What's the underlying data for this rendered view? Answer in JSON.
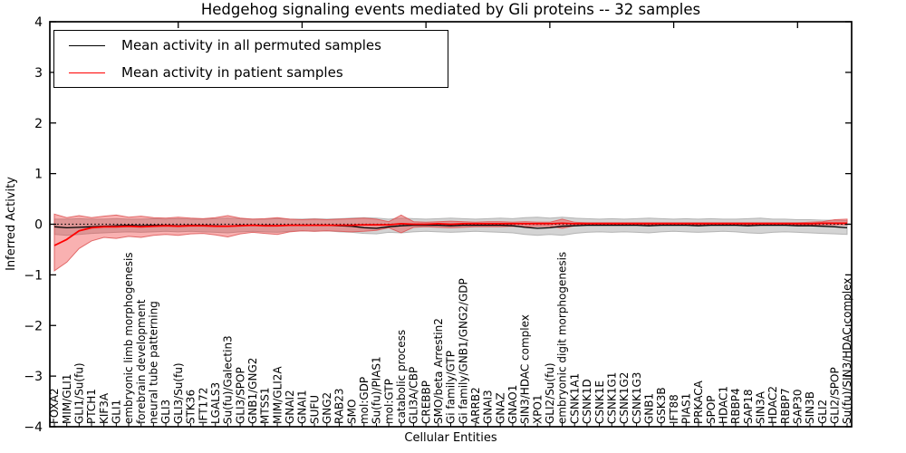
{
  "chart_data": {
    "type": "line",
    "title": "Hedgehog signaling events mediated by Gli proteins -- 32 samples",
    "xlabel": "Cellular Entities",
    "ylabel": "Inferred Activity",
    "ylim": [
      -4,
      4
    ],
    "yticks": [
      -4,
      -3,
      -2,
      -1,
      0,
      1,
      2,
      3,
      4
    ],
    "grid": false,
    "zero_line": true,
    "zero_line_style": "dotted",
    "legend_position": "upper left",
    "categories": [
      "FOXA2",
      "MIM/GLI1",
      "GLI1/Su(fu)",
      "PTCH1",
      "KIF3A",
      "GLI1",
      "embryonic limb morphogenesis",
      "forebrain development",
      "neural tube patterning",
      "GLI3",
      "GLI3/Su(fu)",
      "STK36",
      "IFT172",
      "LGALS3",
      "Su(fu)/Galectin3",
      "GLI3/SPOP",
      "GNB1/GNG2",
      "MTSS1",
      "MIM/GLI2A",
      "GNAI2",
      "GNAI1",
      "SUFU",
      "GNG2",
      "RAB23",
      "SMO",
      "mol:GDP",
      "Su(fu)/PIAS1",
      "mol:GTP",
      "catabolic process",
      "GLI3A/CBP",
      "CREBBP",
      "SMO/beta Arrestin2",
      "Gi family/GTP",
      "Gi family/GNB1/GNG2/GDP",
      "ARRB2",
      "GNAI3",
      "GNAZ",
      "GNAO1",
      "SIN3/HDAC complex",
      "XPO1",
      "GLI2/Su(fu)",
      "embryonic digit morphogenesis",
      "CSNK1A1",
      "CSNK1D",
      "CSNK1E",
      "CSNK1G1",
      "CSNK1G2",
      "CSNK1G3",
      "GNB1",
      "GSK3B",
      "IFT88",
      "PIAS1",
      "PRKACA",
      "SPOP",
      "HDAC1",
      "RBBP4",
      "SAP18",
      "SIN3A",
      "HDAC2",
      "RBBP7",
      "SAP30",
      "SIN3B",
      "GLI2",
      "GLI2/SPOP",
      "Su(fu)/SIN3/HDAC complex"
    ],
    "series": [
      {
        "name": "Mean activity in all permuted samples",
        "color": "#000000",
        "values": [
          -0.05,
          -0.07,
          -0.06,
          -0.05,
          -0.04,
          -0.03,
          -0.02,
          -0.03,
          -0.02,
          -0.02,
          -0.03,
          -0.02,
          -0.02,
          -0.03,
          -0.04,
          -0.02,
          -0.02,
          -0.02,
          -0.03,
          -0.02,
          -0.02,
          -0.02,
          -0.02,
          -0.03,
          -0.04,
          -0.07,
          -0.08,
          -0.05,
          -0.03,
          -0.02,
          -0.02,
          -0.02,
          -0.03,
          -0.02,
          -0.02,
          -0.02,
          -0.02,
          -0.03,
          -0.06,
          -0.08,
          -0.07,
          -0.04,
          -0.03,
          -0.02,
          -0.02,
          -0.02,
          -0.02,
          -0.02,
          -0.03,
          -0.02,
          -0.02,
          -0.02,
          -0.03,
          -0.02,
          -0.02,
          -0.02,
          -0.03,
          -0.02,
          -0.02,
          -0.02,
          -0.03,
          -0.03,
          -0.04,
          -0.05,
          -0.07
        ]
      },
      {
        "name": "Mean activity in patient samples",
        "color": "#ff0000",
        "values": [
          -0.42,
          -0.3,
          -0.13,
          -0.07,
          -0.05,
          -0.05,
          -0.04,
          -0.05,
          -0.04,
          -0.03,
          -0.04,
          -0.03,
          -0.03,
          -0.04,
          -0.04,
          -0.03,
          -0.02,
          -0.03,
          -0.03,
          -0.02,
          -0.02,
          -0.02,
          -0.02,
          -0.02,
          -0.02,
          -0.01,
          -0.01,
          -0.01,
          0.01,
          0.0,
          0.0,
          0.01,
          0.0,
          0.01,
          0.01,
          0.01,
          0.01,
          0.01,
          0.01,
          0.01,
          0.01,
          0.02,
          0.01,
          0.01,
          0.01,
          0.01,
          0.01,
          0.01,
          0.01,
          0.01,
          0.01,
          0.01,
          0.01,
          0.01,
          0.01,
          0.01,
          0.01,
          0.01,
          0.01,
          0.01,
          0.01,
          0.01,
          0.02,
          0.02,
          0.02
        ]
      }
    ],
    "bands": [
      {
        "name": "permuted-std-band",
        "color": "#999999",
        "edge": "#aaaaaa",
        "opacity": 0.42,
        "upper": [
          0.1,
          0.1,
          0.11,
          0.1,
          0.1,
          0.11,
          0.1,
          0.1,
          0.11,
          0.1,
          0.11,
          0.1,
          0.1,
          0.11,
          0.12,
          0.11,
          0.1,
          0.1,
          0.11,
          0.1,
          0.1,
          0.11,
          0.1,
          0.11,
          0.12,
          0.13,
          0.12,
          0.1,
          0.12,
          0.11,
          0.1,
          0.11,
          0.12,
          0.11,
          0.1,
          0.11,
          0.12,
          0.11,
          0.13,
          0.14,
          0.12,
          0.14,
          0.12,
          0.11,
          0.1,
          0.11,
          0.1,
          0.11,
          0.12,
          0.11,
          0.1,
          0.11,
          0.1,
          0.11,
          0.1,
          0.1,
          0.11,
          0.12,
          0.1,
          0.1,
          0.09,
          0.09,
          0.08,
          0.08,
          0.07
        ],
        "lower": [
          -0.2,
          -0.22,
          -0.2,
          -0.18,
          -0.17,
          -0.16,
          -0.15,
          -0.16,
          -0.15,
          -0.14,
          -0.15,
          -0.14,
          -0.15,
          -0.16,
          -0.17,
          -0.15,
          -0.14,
          -0.15,
          -0.16,
          -0.14,
          -0.13,
          -0.14,
          -0.13,
          -0.15,
          -0.16,
          -0.18,
          -0.19,
          -0.16,
          -0.17,
          -0.15,
          -0.14,
          -0.15,
          -0.16,
          -0.15,
          -0.14,
          -0.15,
          -0.16,
          -0.17,
          -0.2,
          -0.22,
          -0.2,
          -0.22,
          -0.18,
          -0.16,
          -0.15,
          -0.16,
          -0.15,
          -0.16,
          -0.17,
          -0.15,
          -0.14,
          -0.15,
          -0.16,
          -0.15,
          -0.14,
          -0.15,
          -0.17,
          -0.18,
          -0.16,
          -0.15,
          -0.16,
          -0.17,
          -0.18,
          -0.19,
          -0.2
        ]
      },
      {
        "name": "patient-std-band",
        "color": "#ee3333",
        "edge": "#dd5555",
        "opacity": 0.38,
        "upper": [
          0.2,
          0.13,
          0.17,
          0.13,
          0.16,
          0.18,
          0.14,
          0.16,
          0.13,
          0.12,
          0.14,
          0.12,
          0.11,
          0.13,
          0.17,
          0.12,
          0.1,
          0.11,
          0.13,
          0.1,
          0.09,
          0.1,
          0.09,
          0.1,
          0.11,
          0.12,
          0.1,
          0.05,
          0.18,
          0.05,
          0.04,
          0.05,
          0.06,
          0.05,
          0.04,
          0.05,
          0.05,
          0.04,
          0.05,
          0.04,
          0.04,
          0.1,
          0.04,
          0.03,
          0.03,
          0.03,
          0.03,
          0.03,
          0.03,
          0.03,
          0.03,
          0.03,
          0.03,
          0.03,
          0.03,
          0.03,
          0.03,
          0.03,
          0.03,
          0.03,
          0.03,
          0.04,
          0.05,
          0.09,
          0.1
        ],
        "lower": [
          -0.92,
          -0.75,
          -0.48,
          -0.33,
          -0.26,
          -0.28,
          -0.24,
          -0.26,
          -0.22,
          -0.2,
          -0.22,
          -0.19,
          -0.18,
          -0.21,
          -0.25,
          -0.19,
          -0.16,
          -0.18,
          -0.2,
          -0.15,
          -0.13,
          -0.14,
          -0.13,
          -0.14,
          -0.15,
          -0.14,
          -0.12,
          -0.07,
          -0.17,
          -0.06,
          -0.05,
          -0.06,
          -0.07,
          -0.06,
          -0.05,
          -0.05,
          -0.05,
          -0.04,
          -0.05,
          -0.04,
          -0.04,
          -0.08,
          -0.03,
          -0.02,
          -0.02,
          -0.02,
          -0.02,
          -0.02,
          -0.02,
          -0.02,
          -0.02,
          -0.02,
          -0.02,
          -0.02,
          -0.02,
          -0.02,
          -0.02,
          -0.02,
          -0.02,
          -0.02,
          -0.02,
          -0.02,
          -0.01,
          -0.01,
          -0.01
        ]
      }
    ]
  }
}
